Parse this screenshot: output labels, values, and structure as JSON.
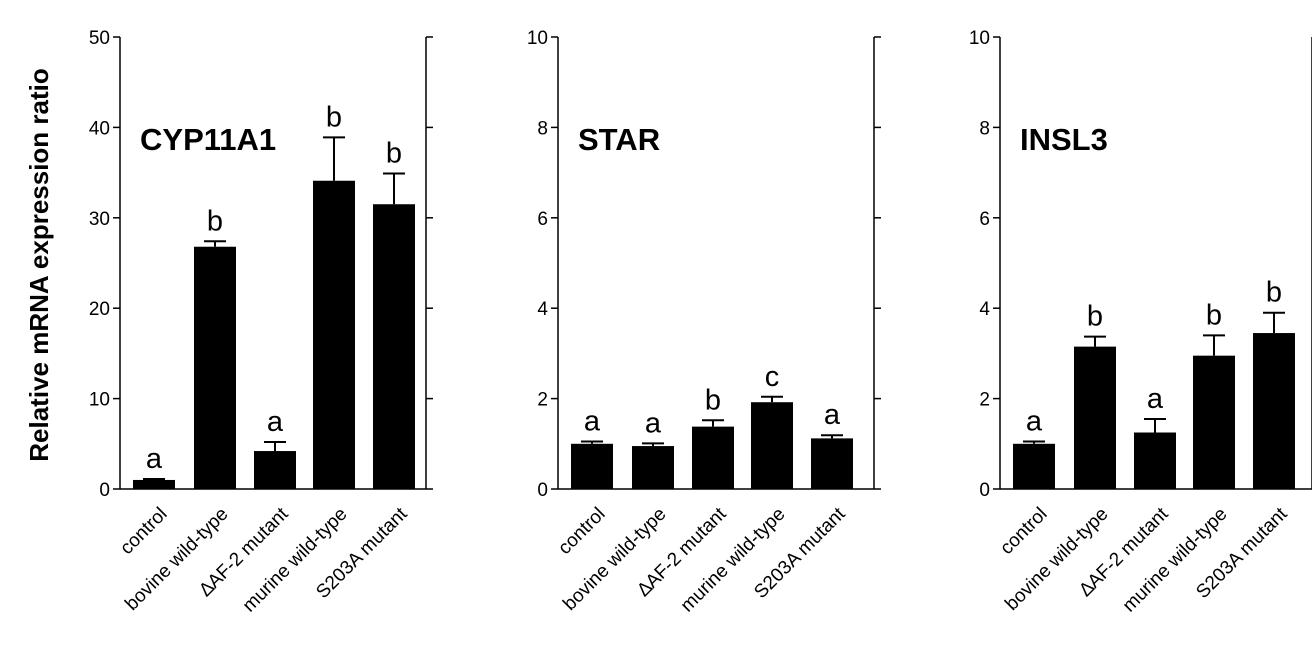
{
  "ylabel": "Relative mRNA expression ratio",
  "chart_data": [
    {
      "type": "bar",
      "title": "CYP11A1",
      "categories": [
        "control",
        "bovine wild-type",
        "∆AF-2 mutant",
        "murine wild-type",
        "S203A mutant"
      ],
      "values": [
        1.0,
        26.8,
        4.2,
        34.1,
        31.5
      ],
      "errors": [
        0.1,
        0.6,
        1.0,
        4.8,
        3.4
      ],
      "letters": [
        "a",
        "b",
        "a",
        "b",
        "b"
      ],
      "ylim": [
        0,
        50
      ],
      "yticks": [
        0,
        10,
        20,
        30,
        40,
        50
      ],
      "ylabel": "Relative mRNA expression ratio",
      "color": "#000000",
      "grid": false
    },
    {
      "type": "bar",
      "title": "STAR",
      "categories": [
        "control",
        "bovine wild-type",
        "∆AF-2 mutant",
        "murine wild-type",
        "S203A mutant"
      ],
      "values": [
        1.0,
        0.95,
        1.38,
        1.92,
        1.12
      ],
      "errors": [
        0.05,
        0.06,
        0.14,
        0.12,
        0.07
      ],
      "letters": [
        "a",
        "a",
        "b",
        "c",
        "a"
      ],
      "ylim": [
        0,
        10
      ],
      "yticks": [
        0,
        2,
        4,
        6,
        8,
        10
      ],
      "color": "#000000",
      "grid": false
    },
    {
      "type": "bar",
      "title": "INSL3",
      "categories": [
        "control",
        "bovine wild-type",
        "∆AF-2 mutant",
        "murine wild-type",
        "S203A mutant"
      ],
      "values": [
        1.0,
        3.15,
        1.25,
        2.95,
        3.45
      ],
      "errors": [
        0.05,
        0.22,
        0.3,
        0.45,
        0.45
      ],
      "letters": [
        "a",
        "b",
        "a",
        "b",
        "b"
      ],
      "ylim": [
        0,
        10
      ],
      "yticks": [
        0,
        2,
        4,
        6,
        8,
        10
      ],
      "color": "#000000",
      "grid": false
    }
  ]
}
